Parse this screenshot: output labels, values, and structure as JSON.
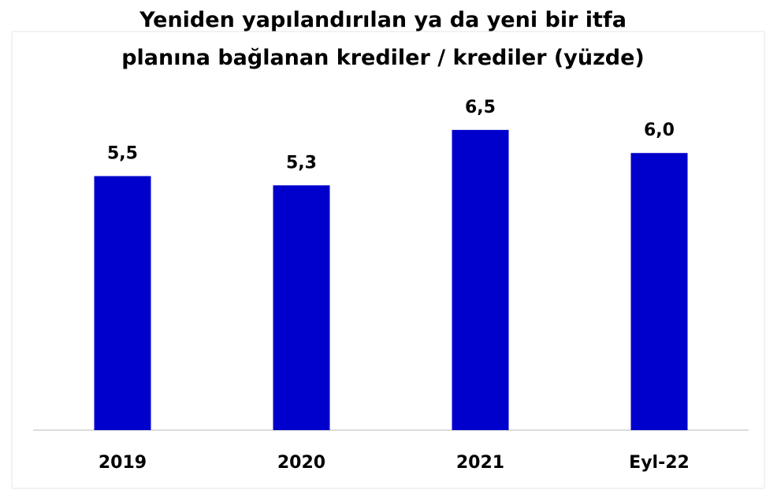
{
  "chart_data": {
    "type": "bar",
    "title": "Yeniden yapılandırılan ya da yeni bir itfa planına bağlanan krediler / krediler (yüzde)",
    "categories": [
      "2019",
      "2020",
      "2021",
      "Eyl-22"
    ],
    "values": [
      5.5,
      5.3,
      6.5,
      6.0
    ],
    "value_labels": [
      "5,5",
      "5,3",
      "6,5",
      "6,0"
    ],
    "color": "#0000cc",
    "ylim": [
      0,
      7.3
    ]
  }
}
